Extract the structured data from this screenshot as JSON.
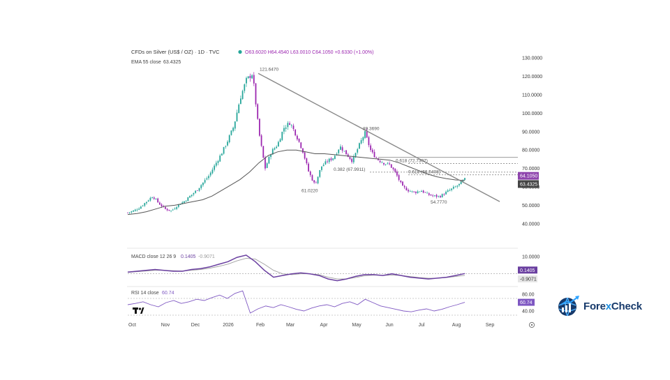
{
  "header": {
    "symbol": "CFDs on Silver (US$ / OZ) · 1D · TVC",
    "ohlc": "O63.6020 H64.4540 L63.0010 C64.1050 +0.6330 (+1.00%)",
    "ema_label": "EMA 55 close",
    "ema_value": "63.4325"
  },
  "brand": {
    "name_part1": "Fore",
    "name_x": "x",
    "name_part2": "Check"
  },
  "tv_logo": "tradingview-logo",
  "colors": {
    "up": "#26a69a",
    "down": "#9c27b0",
    "ema": "#555555",
    "trendline": "#888888",
    "macd": "#6a3fa0",
    "signal": "#a0a0a0",
    "rsi": "#7e57c2",
    "badge_price": "#8e44ad",
    "badge_ema": "#444444"
  },
  "chart_data": [
    {
      "type": "candlestick",
      "title": "CFDs on Silver (US$ / OZ) · 1D · TVC",
      "x_tick_labels": [
        "Oct",
        "Nov",
        "Dec",
        "2026",
        "Feb",
        "Mar",
        "Apr",
        "May",
        "Jun",
        "Jul",
        "Aug",
        "Sep"
      ],
      "y_tick_labels": [
        "130.0000",
        "120.0000",
        "110.0000",
        "100.0000",
        "90.0000",
        "80.0000",
        "70.0000",
        "60.0000",
        "50.0000",
        "40.0000"
      ],
      "ylim": [
        35,
        135
      ],
      "close_path": [
        46,
        47,
        49,
        52,
        55,
        51,
        48,
        47,
        50,
        52,
        55,
        58,
        62,
        66,
        72,
        78,
        85,
        93,
        108,
        118,
        121.647,
        90,
        70,
        79,
        83,
        92,
        95,
        88,
        80,
        68,
        61.022,
        71,
        74,
        76,
        82,
        78,
        74,
        82,
        89.369,
        79,
        75,
        73,
        72,
        67,
        60,
        58,
        57,
        58,
        56,
        55,
        54.777,
        57,
        59,
        61,
        64.105
      ],
      "ema55_path": [
        45,
        45.5,
        46.5,
        48,
        49.5,
        50,
        51,
        52,
        53,
        55,
        58,
        61,
        64,
        68,
        73,
        77,
        79,
        80,
        80,
        79,
        78,
        78,
        77.5,
        77,
        76.5,
        76,
        75.5,
        75,
        74.5,
        73,
        71,
        69,
        67,
        65.5,
        64.5,
        63.8,
        63.4325
      ],
      "annotations": [
        {
          "text": "121.6470",
          "value": 121.647
        },
        {
          "text": "89.3690",
          "value": 89.369
        },
        {
          "text": "61.0220",
          "value": 61.022
        },
        {
          "text": "54.7770",
          "value": 54.777
        },
        {
          "text": "0.382 (67.9911)",
          "value": 67.9911
        },
        {
          "text": "0.618 (72.7307)",
          "value": 72.7307
        },
        {
          "text": "0.618 (66.5408)",
          "value": 66.5408
        }
      ],
      "horizontal_levels": [
        76.0,
        72.7307,
        67.9911,
        66.5408
      ],
      "trendline": {
        "from": {
          "x": "Feb",
          "y": 121.647
        },
        "to": {
          "x": "Aug",
          "y": 52
        }
      },
      "last_price": {
        "text": "64.1050",
        "value": 64.105
      },
      "ema_value": {
        "text": "63.4325",
        "value": 63.4325
      }
    },
    {
      "type": "line",
      "title": "MACD close 12 26 9",
      "header_values": [
        "0.1405",
        "-0.9071"
      ],
      "y_tick_labels": [
        "10.0000"
      ],
      "macd_path": [
        1.0,
        1.5,
        2.0,
        2.5,
        2.0,
        1.5,
        1.5,
        2.5,
        3.0,
        4.0,
        5.5,
        7.0,
        9.5,
        10.8,
        7.0,
        2.0,
        -2.0,
        -1.0,
        0.0,
        0.5,
        0.0,
        -1.0,
        -3.0,
        -4.0,
        -3.0,
        -1.5,
        -0.5,
        -0.5,
        -1.0,
        0.0,
        -1.0,
        -2.0,
        -2.5,
        -3.0,
        -2.5,
        -2.0,
        -1.0,
        0.1405
      ],
      "signal_path": [
        0.8,
        1.2,
        1.6,
        2.0,
        2.0,
        1.8,
        1.6,
        2.0,
        2.5,
        3.2,
        4.3,
        5.6,
        7.5,
        9.0,
        8.5,
        5.5,
        2.0,
        0.0,
        -0.5,
        0.0,
        0.0,
        -0.5,
        -2.0,
        -3.0,
        -3.0,
        -2.2,
        -1.2,
        -0.8,
        -1.0,
        -0.8,
        -1.0,
        -1.6,
        -2.2,
        -2.6,
        -2.6,
        -2.2,
        -1.6,
        -0.9071
      ],
      "ylim": [
        -7,
        14
      ],
      "last_values": [
        {
          "text": "0.1405",
          "value": 0.1405
        },
        {
          "text": "-0.9071",
          "value": -0.9071
        }
      ]
    },
    {
      "type": "line",
      "title": "RSI 14 close",
      "header_values": [
        "60.74"
      ],
      "y_tick_labels": [
        "80.00",
        "40.00"
      ],
      "ylim": [
        20,
        95
      ],
      "levels": [
        70,
        30
      ],
      "rsi_path": [
        55,
        58,
        62,
        55,
        50,
        60,
        65,
        58,
        62,
        68,
        65,
        72,
        78,
        70,
        82,
        88,
        35,
        45,
        52,
        48,
        55,
        50,
        44,
        40,
        47,
        52,
        55,
        50,
        58,
        62,
        55,
        68,
        60,
        52,
        48,
        44,
        40,
        38,
        42,
        45,
        40,
        44,
        50,
        55,
        60.74
      ],
      "last_value": {
        "text": "60.74",
        "value": 60.74
      }
    }
  ]
}
